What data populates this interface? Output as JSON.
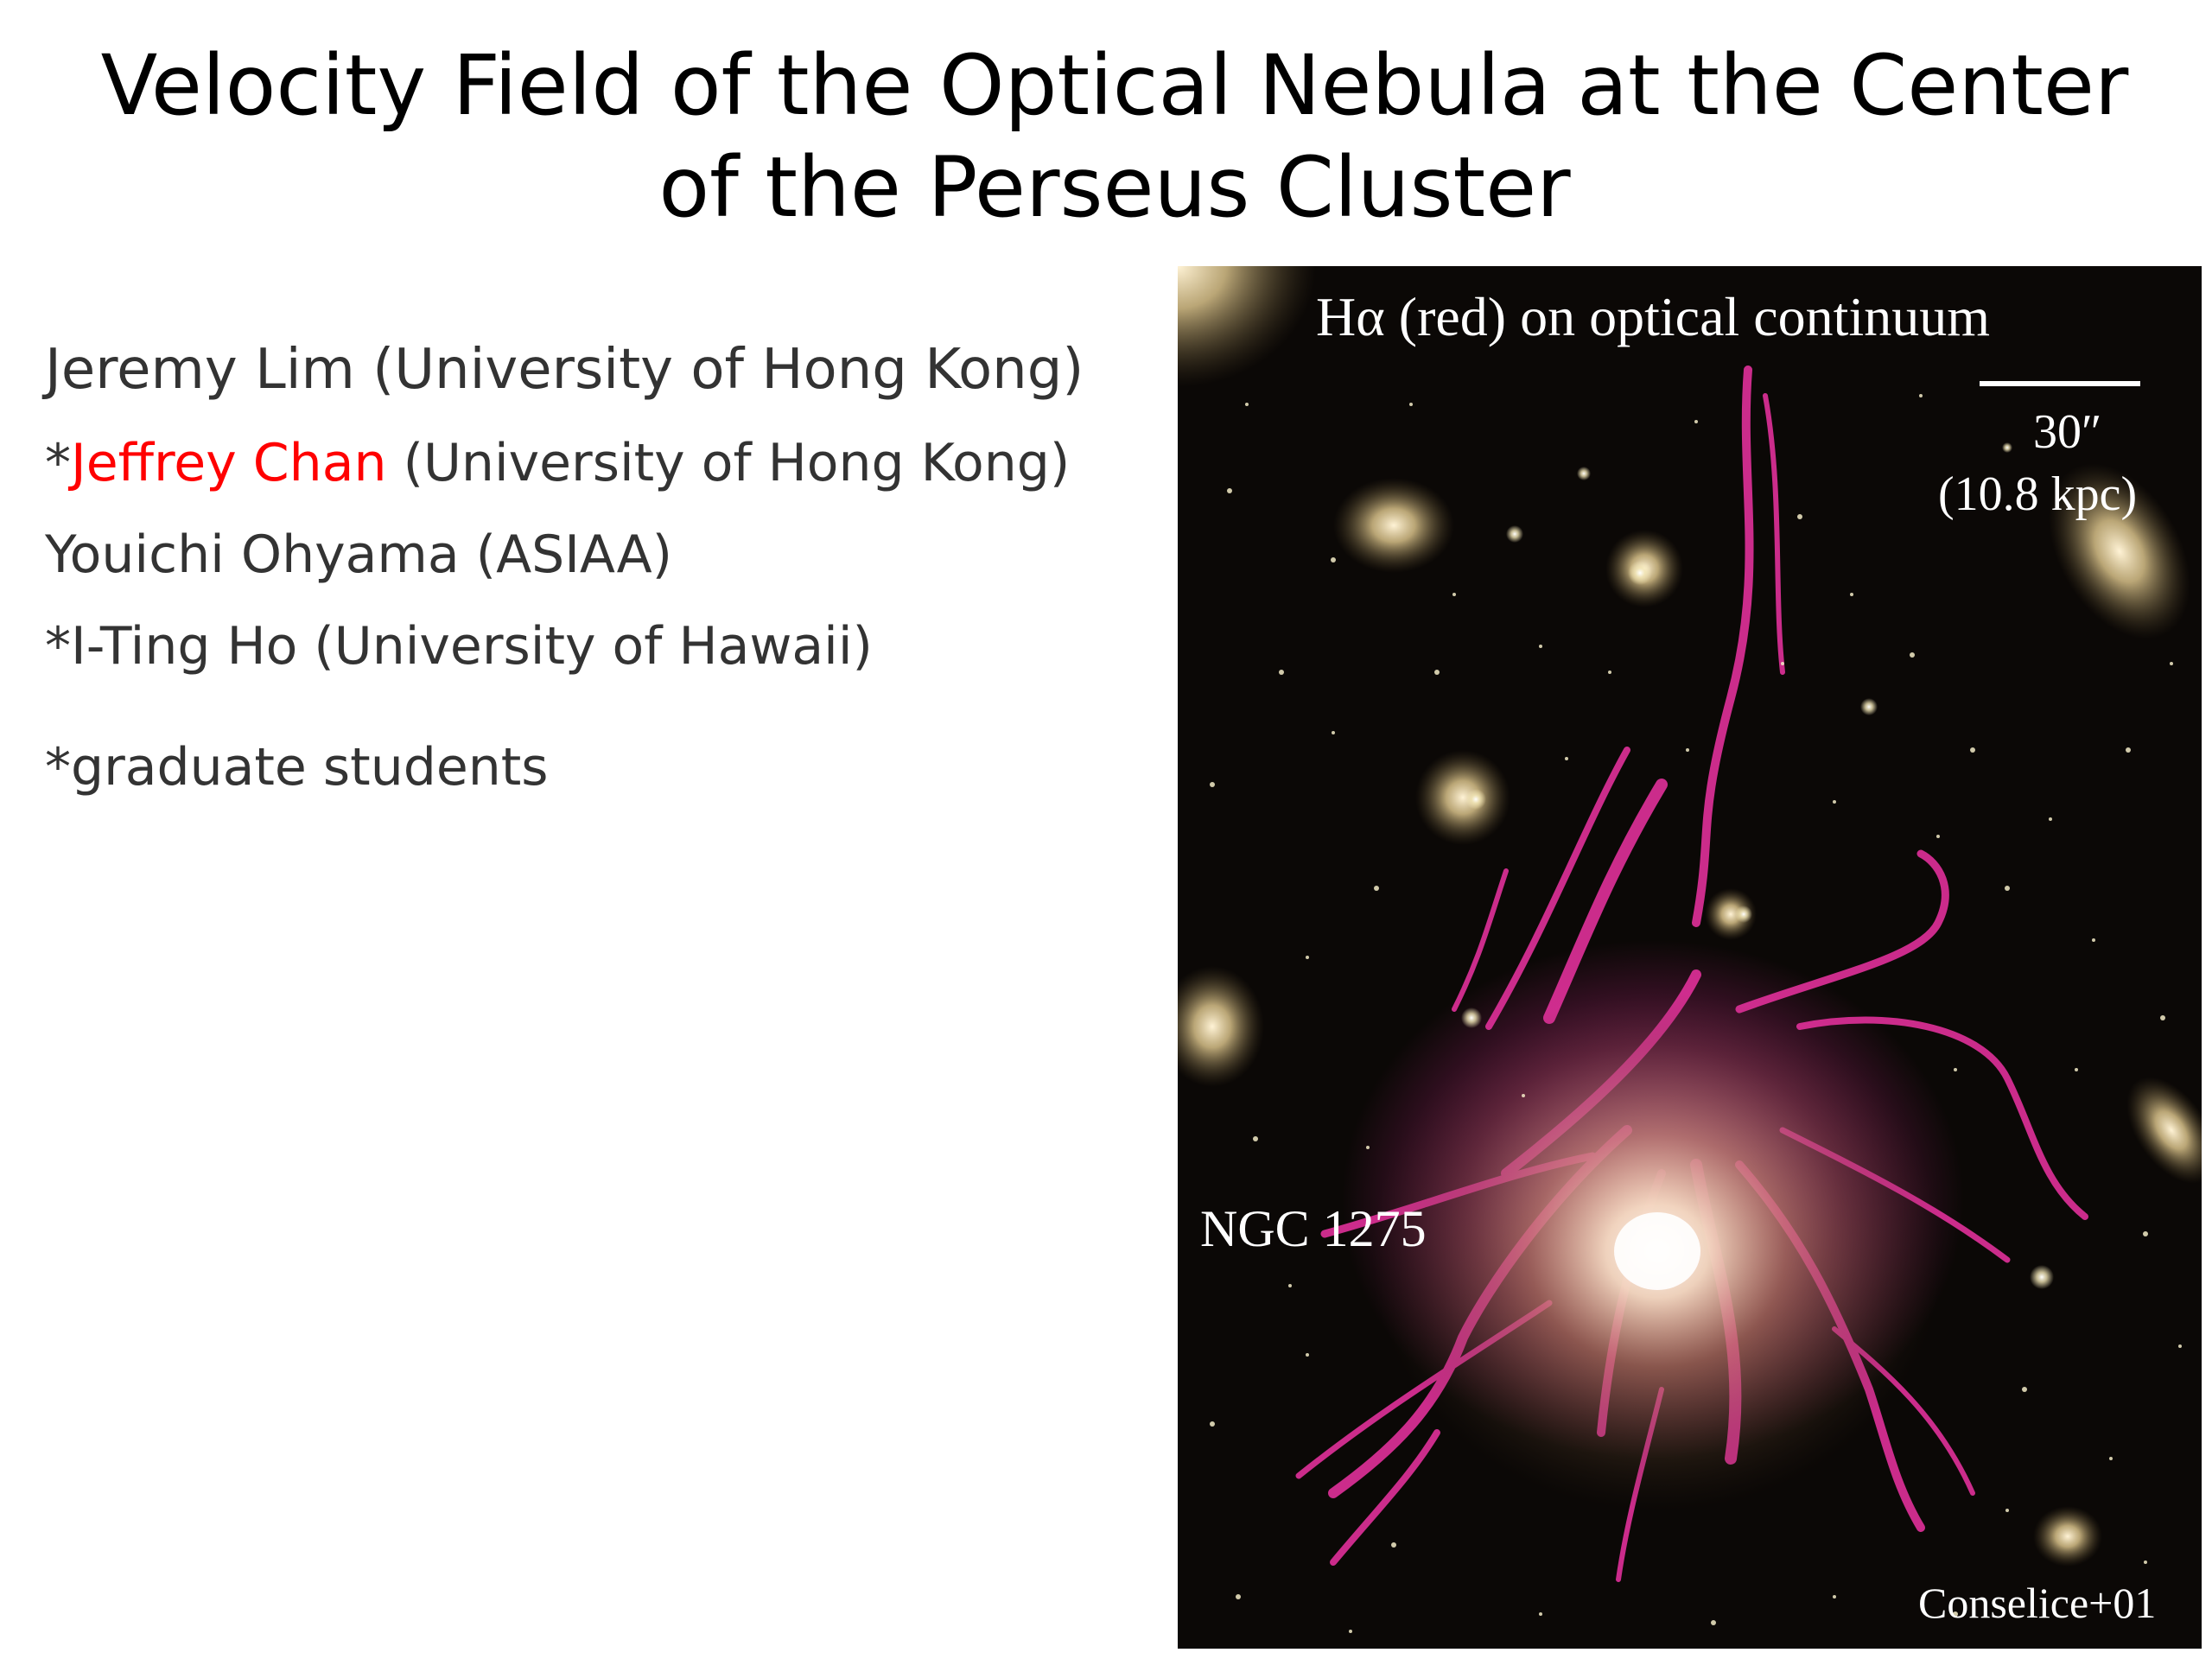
{
  "slide": {
    "title_line1": "Velocity Field of the Optical Nebula at the Center",
    "title_line2": "of the Perseus Cluster"
  },
  "authors": {
    "line1": "Jeremy Lim (University of Hong Kong)",
    "line2_star": "*",
    "line2_name": "Jeffrey Chan",
    "line2_affil": " (University of Hong Kong)",
    "line3": "Youichi Ohyama (ASIAA)",
    "line4": "*I-Ting Ho (University of Hawaii)",
    "note": "*graduate students",
    "highlight_color": "#ff0000"
  },
  "figure": {
    "title": "Hα (red) on optical continuum",
    "scale_arcsec": "30″",
    "scale_kpc": "(10.8 kpc)",
    "galaxy_label": "NGC 1275",
    "credit": "Conselice+01",
    "filament_color": "#e0309a",
    "galaxy_color": "#e8d6a0",
    "background_color": "#0b0806"
  }
}
